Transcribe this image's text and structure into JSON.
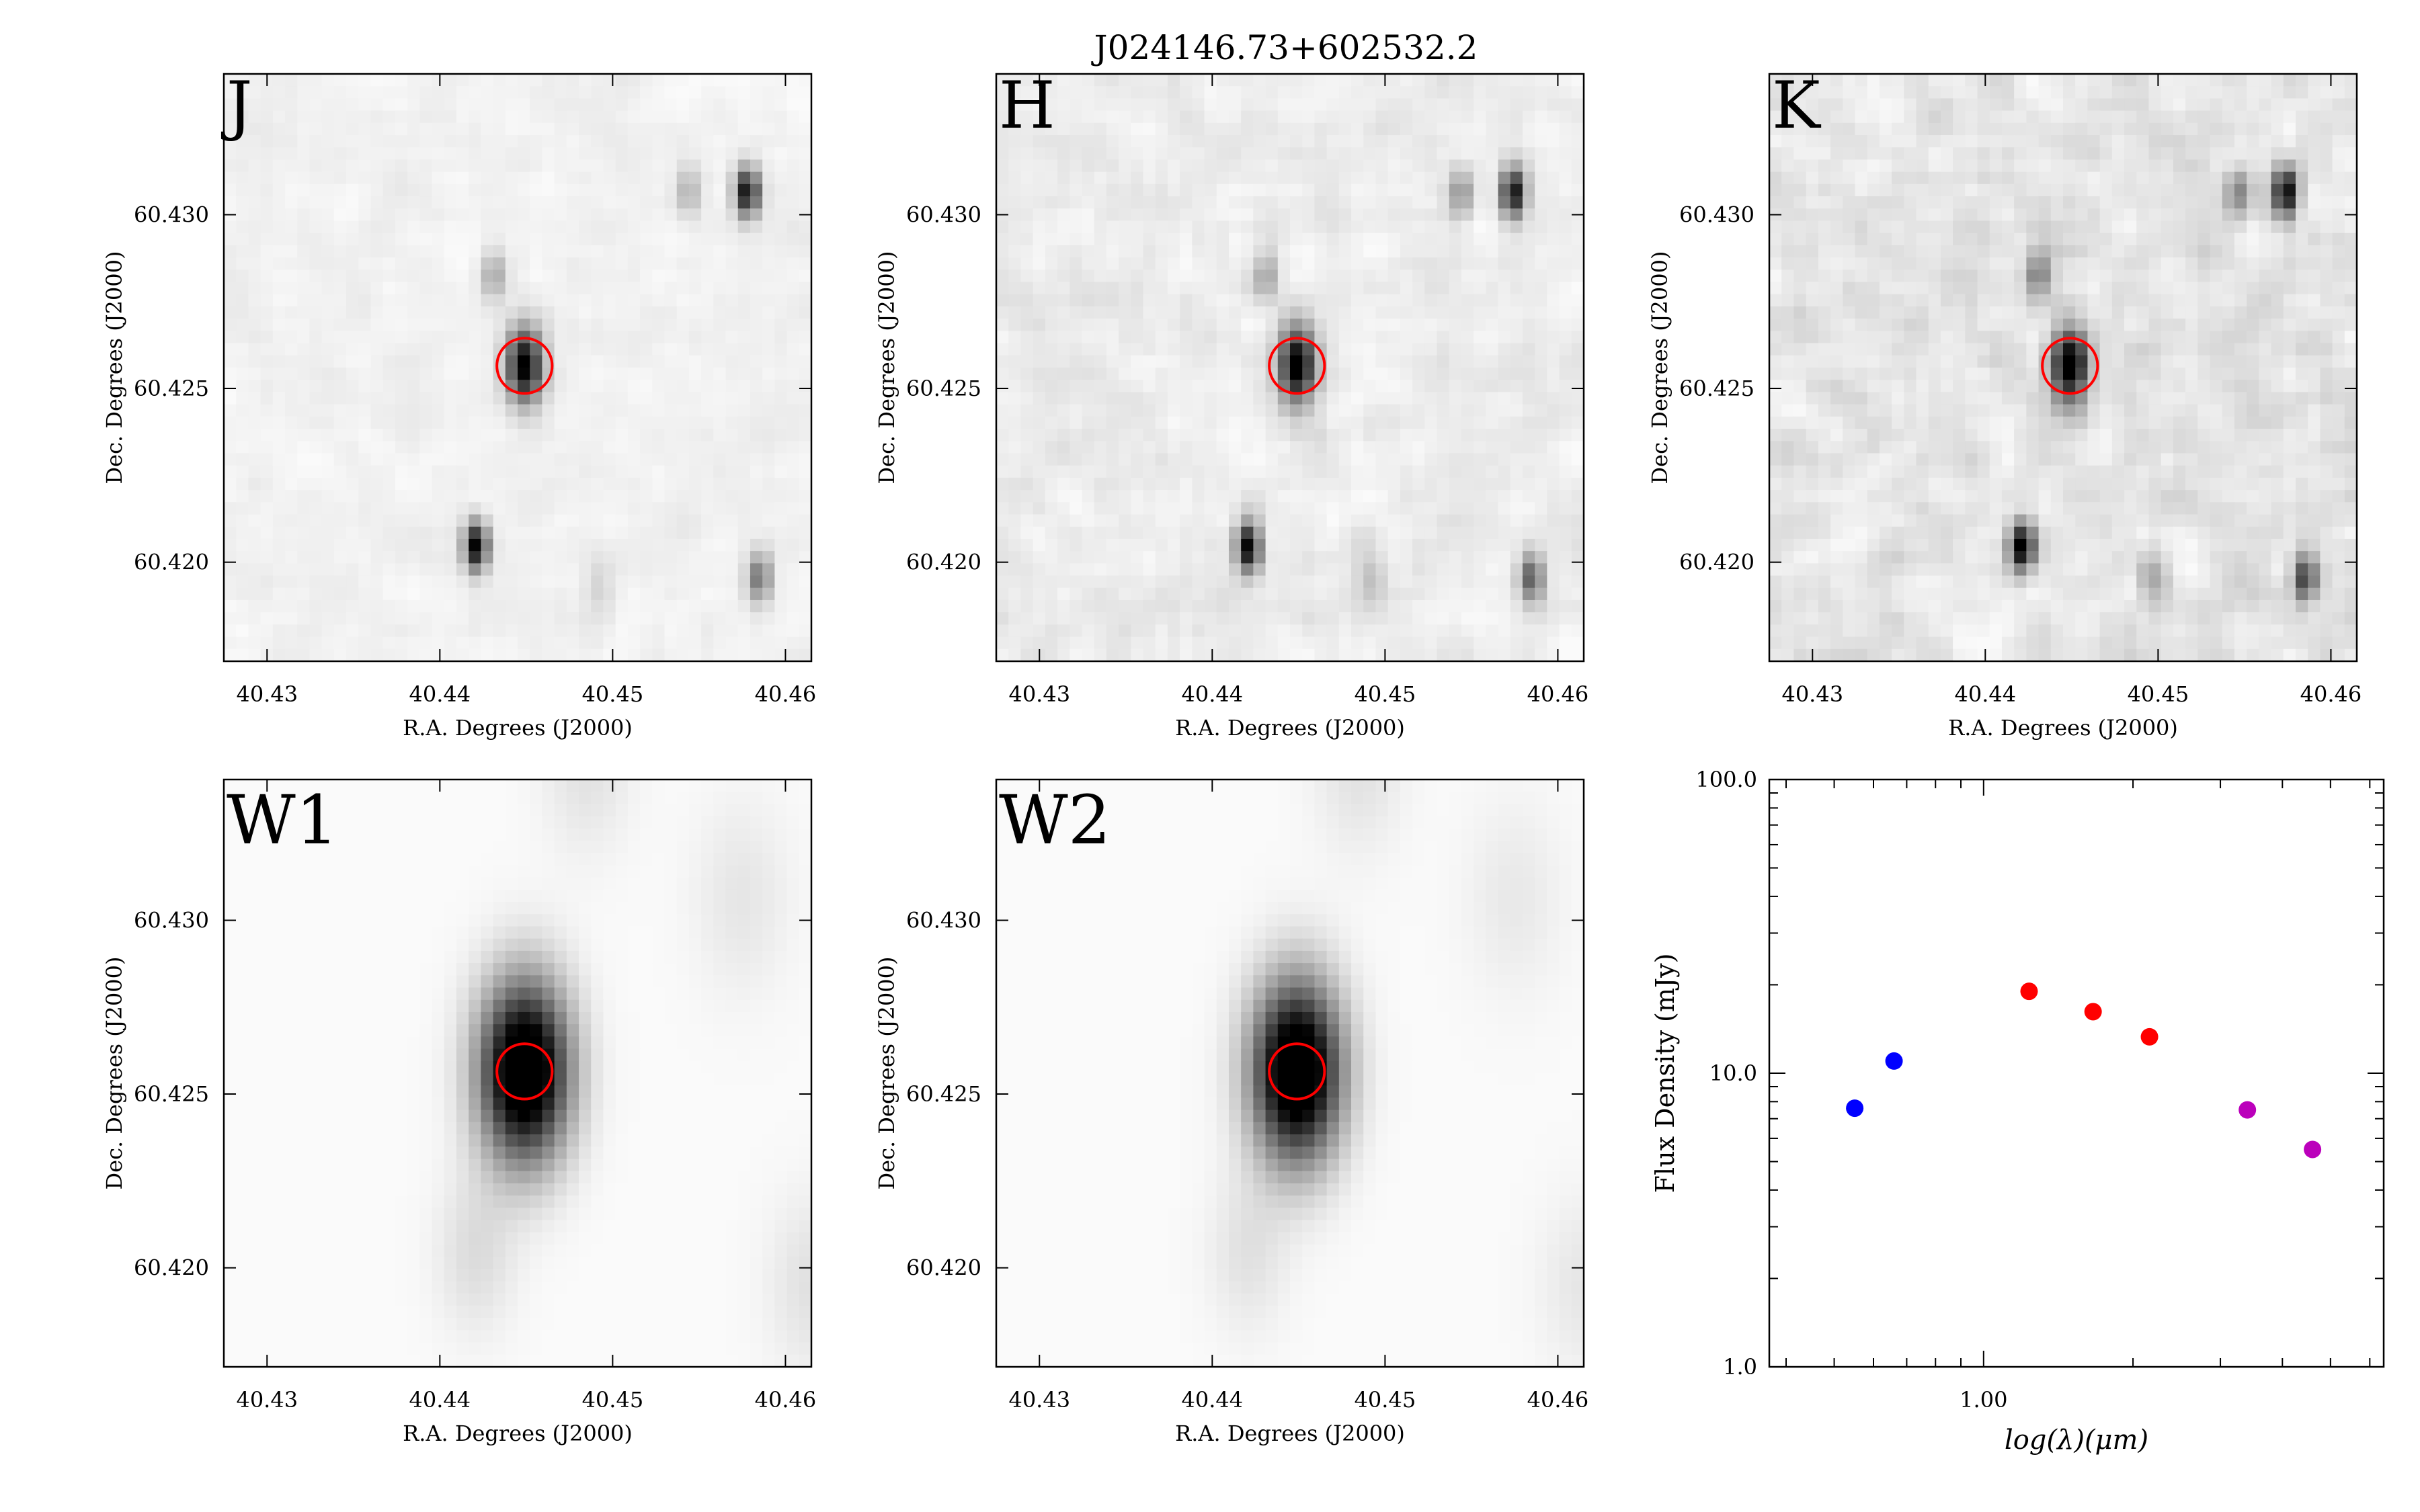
{
  "figure_title": "J024146.73+602532.2",
  "colors": {
    "band_label": "#ff00ff",
    "circle": "#ff0000",
    "sed_blue": "#0000ff",
    "sed_red": "#ff0000",
    "sed_magenta": "#bb00bb"
  },
  "chart_data": [
    {
      "type": "heatmap",
      "panel": "J",
      "band_label": "J",
      "xlabel": "R.A. Degrees (J2000)",
      "ylabel": "Dec. Degrees (J2000)",
      "xlim": [
        40.4275,
        40.4615
      ],
      "ylim": [
        60.41715,
        60.43405
      ],
      "xticks": [
        "40.43",
        "40.44",
        "40.45",
        "40.46"
      ],
      "yticks": [
        "60.420",
        "60.425",
        "60.430"
      ],
      "circle": {
        "ra": 40.4449,
        "dec": 60.42565,
        "radius_deg": 0.0016
      },
      "sources": [
        {
          "ra": 40.4449,
          "dec": 60.42565,
          "intensity": 1.0,
          "sigma": 0.00075
        },
        {
          "ra": 40.4578,
          "dec": 60.43065,
          "intensity": 0.9,
          "sigma": 0.0005
        },
        {
          "ra": 40.4544,
          "dec": 60.43065,
          "intensity": 0.25,
          "sigma": 0.0005
        },
        {
          "ra": 40.4431,
          "dec": 60.42825,
          "intensity": 0.3,
          "sigma": 0.0005
        },
        {
          "ra": 40.4421,
          "dec": 60.42045,
          "intensity": 0.95,
          "sigma": 0.0005
        },
        {
          "ra": 40.4585,
          "dec": 60.41955,
          "intensity": 0.5,
          "sigma": 0.0005
        },
        {
          "ra": 40.4492,
          "dec": 60.4193,
          "intensity": 0.12,
          "sigma": 0.0006
        }
      ],
      "noise": 0.1
    },
    {
      "type": "heatmap",
      "panel": "H",
      "band_label": "H",
      "xlabel": "R.A. Degrees (J2000)",
      "ylabel": "Dec. Degrees (J2000)",
      "xlim": [
        40.4275,
        40.4615
      ],
      "ylim": [
        60.41715,
        60.43405
      ],
      "xticks": [
        "40.43",
        "40.44",
        "40.45",
        "40.46"
      ],
      "yticks": [
        "60.420",
        "60.425",
        "60.430"
      ],
      "circle": {
        "ra": 40.4449,
        "dec": 60.42565,
        "radius_deg": 0.0016
      },
      "sources": [
        {
          "ra": 40.4449,
          "dec": 60.42565,
          "intensity": 1.0,
          "sigma": 0.00075
        },
        {
          "ra": 40.4574,
          "dec": 60.43065,
          "intensity": 0.9,
          "sigma": 0.0005
        },
        {
          "ra": 40.4544,
          "dec": 60.43065,
          "intensity": 0.35,
          "sigma": 0.0005
        },
        {
          "ra": 40.4431,
          "dec": 60.42825,
          "intensity": 0.3,
          "sigma": 0.0005
        },
        {
          "ra": 40.4421,
          "dec": 60.42045,
          "intensity": 0.95,
          "sigma": 0.0005
        },
        {
          "ra": 40.4585,
          "dec": 60.41955,
          "intensity": 0.6,
          "sigma": 0.0005
        },
        {
          "ra": 40.4492,
          "dec": 60.41945,
          "intensity": 0.15,
          "sigma": 0.0006
        }
      ],
      "noise": 0.16
    },
    {
      "type": "heatmap",
      "panel": "K",
      "band_label": "K",
      "xlabel": "R.A. Degrees (J2000)",
      "ylabel": "Dec. Degrees (J2000)",
      "xlim": [
        40.4275,
        40.4615
      ],
      "ylim": [
        60.41715,
        60.43405
      ],
      "xticks": [
        "40.43",
        "40.44",
        "40.45",
        "40.46"
      ],
      "yticks": [
        "60.420",
        "60.425",
        "60.430"
      ],
      "circle": {
        "ra": 40.4449,
        "dec": 60.42565,
        "radius_deg": 0.0016
      },
      "sources": [
        {
          "ra": 40.4449,
          "dec": 60.42565,
          "intensity": 1.0,
          "sigma": 0.00075
        },
        {
          "ra": 40.4574,
          "dec": 60.43065,
          "intensity": 0.9,
          "sigma": 0.0005
        },
        {
          "ra": 40.4546,
          "dec": 60.43065,
          "intensity": 0.4,
          "sigma": 0.0005
        },
        {
          "ra": 40.4431,
          "dec": 60.42825,
          "intensity": 0.4,
          "sigma": 0.0005
        },
        {
          "ra": 40.4421,
          "dec": 60.42045,
          "intensity": 0.95,
          "sigma": 0.0005
        },
        {
          "ra": 40.4585,
          "dec": 60.41955,
          "intensity": 0.7,
          "sigma": 0.0005
        },
        {
          "ra": 40.4497,
          "dec": 60.41955,
          "intensity": 0.25,
          "sigma": 0.0006
        }
      ],
      "noise": 0.24
    },
    {
      "type": "heatmap",
      "panel": "W1",
      "band_label": "W1",
      "xlabel": "R.A. Degrees (J2000)",
      "ylabel": "Dec. Degrees (J2000)",
      "xlim": [
        40.4275,
        40.4615
      ],
      "ylim": [
        60.41715,
        60.43405
      ],
      "xticks": [
        "40.43",
        "40.44",
        "40.45",
        "40.46"
      ],
      "yticks": [
        "60.420",
        "60.425",
        "60.430"
      ],
      "circle": {
        "ra": 40.4449,
        "dec": 60.42565,
        "radius_deg": 0.0016
      },
      "sources": [
        {
          "ra": 40.4449,
          "dec": 60.42565,
          "intensity": 1.3,
          "sigma": 0.0018
        },
        {
          "ra": 40.4421,
          "dec": 60.42045,
          "intensity": 0.12,
          "sigma": 0.0016
        },
        {
          "ra": 40.4575,
          "dec": 60.43065,
          "intensity": 0.08,
          "sigma": 0.002
        },
        {
          "ra": 40.4485,
          "dec": 60.4345,
          "intensity": 0.1,
          "sigma": 0.0018
        },
        {
          "ra": 40.4615,
          "dec": 60.4195,
          "intensity": 0.1,
          "sigma": 0.0018
        }
      ],
      "noise": 0.0
    },
    {
      "type": "heatmap",
      "panel": "W2",
      "band_label": "W2",
      "xlabel": "R.A. Degrees (J2000)",
      "ylabel": "Dec. Degrees (J2000)",
      "xlim": [
        40.4275,
        40.4615
      ],
      "ylim": [
        60.41715,
        60.43405
      ],
      "xticks": [
        "40.43",
        "40.44",
        "40.45",
        "40.46"
      ],
      "yticks": [
        "60.420",
        "60.425",
        "60.430"
      ],
      "circle": {
        "ra": 40.4449,
        "dec": 60.42565,
        "radius_deg": 0.0016
      },
      "sources": [
        {
          "ra": 40.4449,
          "dec": 60.42565,
          "intensity": 1.3,
          "sigma": 0.0018
        },
        {
          "ra": 40.4421,
          "dec": 60.42045,
          "intensity": 0.1,
          "sigma": 0.0016
        },
        {
          "ra": 40.4575,
          "dec": 60.43065,
          "intensity": 0.07,
          "sigma": 0.002
        },
        {
          "ra": 40.4485,
          "dec": 60.4345,
          "intensity": 0.1,
          "sigma": 0.0018
        },
        {
          "ra": 40.4615,
          "dec": 60.4195,
          "intensity": 0.08,
          "sigma": 0.0018
        }
      ],
      "noise": 0.0
    },
    {
      "type": "scatter",
      "panel": "SED",
      "xlabel": "log(λ)(μm)",
      "ylabel": "Flux Density (mJy)",
      "xscale": "log",
      "yscale": "log",
      "xlim": [
        0.37,
        6.4
      ],
      "ylim": [
        1.0,
        100.0
      ],
      "xticks": [
        "1.00"
      ],
      "yticks": [
        "1.0",
        "10.0",
        "100.0"
      ],
      "points": [
        {
          "x": 0.55,
          "y": 7.6,
          "color": "#0000ff"
        },
        {
          "x": 0.66,
          "y": 11.0,
          "color": "#0000ff"
        },
        {
          "x": 1.235,
          "y": 19.0,
          "color": "#ff0000"
        },
        {
          "x": 1.662,
          "y": 16.2,
          "color": "#ff0000"
        },
        {
          "x": 2.159,
          "y": 13.3,
          "color": "#ff0000"
        },
        {
          "x": 3.4,
          "y": 7.5,
          "color": "#bb00bb"
        },
        {
          "x": 4.6,
          "y": 5.5,
          "color": "#bb00bb"
        }
      ]
    }
  ]
}
